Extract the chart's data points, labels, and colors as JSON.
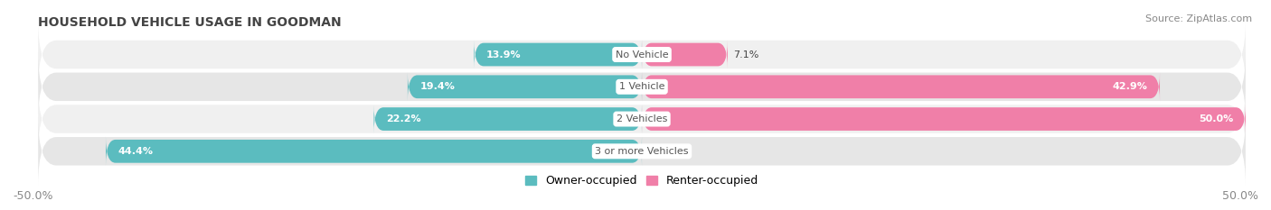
{
  "title": "HOUSEHOLD VEHICLE USAGE IN GOODMAN",
  "source": "Source: ZipAtlas.com",
  "categories": [
    "No Vehicle",
    "1 Vehicle",
    "2 Vehicles",
    "3 or more Vehicles"
  ],
  "owner_values": [
    13.9,
    19.4,
    22.2,
    44.4
  ],
  "renter_values": [
    7.1,
    42.9,
    50.0,
    0.0
  ],
  "owner_color": "#5bbcbf",
  "renter_color": "#f07fa8",
  "xlim": [
    -50,
    50
  ],
  "left_tick_label": "-50.0%",
  "right_tick_label": "50.0%",
  "legend_owner": "Owner-occupied",
  "legend_renter": "Renter-occupied",
  "title_fontsize": 10,
  "source_fontsize": 8,
  "label_fontsize": 8,
  "category_fontsize": 8,
  "bar_height": 0.72,
  "background_color": "#ffffff",
  "row_bg_colors": [
    "#f0f0f0",
    "#e6e6e6",
    "#f0f0f0",
    "#e6e6e6"
  ],
  "row_bg_alpha": 1.0,
  "label_color_owner": "#444444",
  "label_color_renter": "#444444",
  "label_inside_owner": false,
  "label_inside_renter": false,
  "renter_label_inside_row3": true
}
